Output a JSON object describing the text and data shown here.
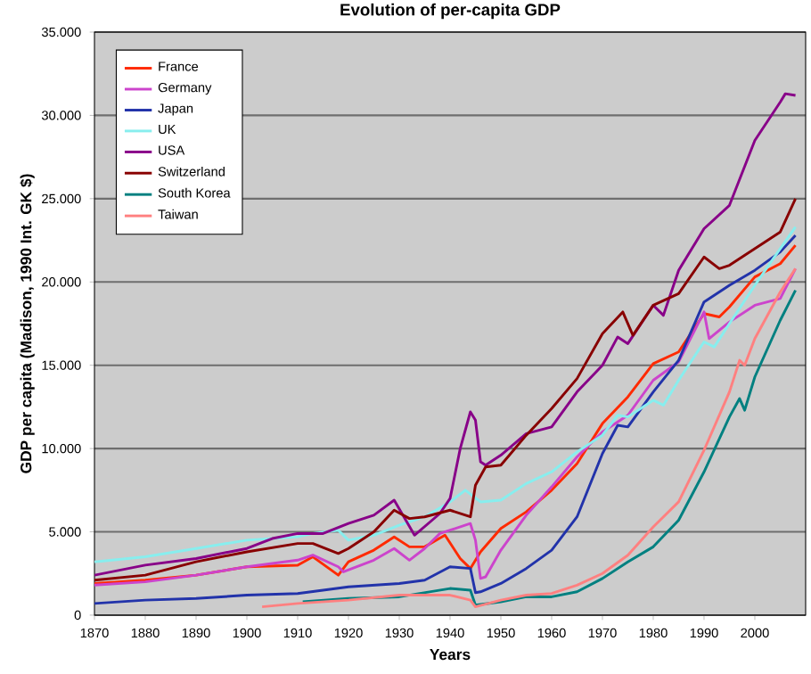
{
  "chart_data": {
    "type": "line",
    "title": "Evolution of per-capita GDP",
    "xlabel": "Years",
    "ylabel": "GDP per capita (Madison, 1990 Int. GK $)",
    "xlim": [
      1870,
      2010
    ],
    "xticks": [
      1870,
      1880,
      1890,
      1900,
      1910,
      1920,
      1930,
      1940,
      1950,
      1960,
      1970,
      1980,
      1990,
      2000
    ],
    "ylim": [
      0,
      35000
    ],
    "yticks": [
      {
        "value": 0,
        "label": "0"
      },
      {
        "value": 5000,
        "label": "5.000"
      },
      {
        "value": 10000,
        "label": "10.000"
      },
      {
        "value": 15000,
        "label": "15.000"
      },
      {
        "value": 20000,
        "label": "20.000"
      },
      {
        "value": 25000,
        "label": "25.000"
      },
      {
        "value": 30000,
        "label": "30.000"
      },
      {
        "value": 35000,
        "label": "35.000"
      }
    ],
    "grid": "y",
    "legend": "top left",
    "marker": "none",
    "line_style": "solid",
    "series": [
      {
        "name": "France",
        "color": "#ff2a00",
        "x": [
          1870,
          1880,
          1890,
          1900,
          1910,
          1913,
          1918,
          1920,
          1925,
          1929,
          1932,
          1935,
          1939,
          1942,
          1944,
          1946,
          1950,
          1955,
          1960,
          1965,
          1970,
          1975,
          1980,
          1985,
          1990,
          1993,
          1995,
          2000,
          2005,
          2008
        ],
        "values": [
          1900,
          2100,
          2400,
          2900,
          3000,
          3500,
          2400,
          3200,
          3900,
          4700,
          4100,
          4100,
          4800,
          3400,
          2800,
          3800,
          5200,
          6200,
          7500,
          9100,
          11500,
          13100,
          15100,
          15800,
          18100,
          17900,
          18500,
          20300,
          21100,
          22200
        ]
      },
      {
        "name": "Germany",
        "color": "#cc44cc",
        "x": [
          1870,
          1880,
          1890,
          1900,
          1910,
          1913,
          1918,
          1919,
          1925,
          1929,
          1932,
          1935,
          1938,
          1944,
          1945,
          1946,
          1947,
          1950,
          1955,
          1960,
          1965,
          1970,
          1975,
          1980,
          1985,
          1990,
          1991,
          1995,
          2000,
          2005,
          2008
        ],
        "values": [
          1800,
          2000,
          2400,
          2900,
          3300,
          3600,
          2900,
          2600,
          3300,
          4000,
          3300,
          4000,
          4900,
          5500,
          4500,
          2200,
          2300,
          3900,
          6000,
          7700,
          9500,
          11000,
          12000,
          14100,
          15200,
          18200,
          16600,
          17600,
          18600,
          19000,
          20800
        ]
      },
      {
        "name": "Japan",
        "color": "#2233aa",
        "x": [
          1870,
          1880,
          1890,
          1900,
          1910,
          1920,
          1930,
          1935,
          1940,
          1944,
          1945,
          1946,
          1950,
          1955,
          1960,
          1965,
          1970,
          1973,
          1975,
          1980,
          1985,
          1990,
          1995,
          2000,
          2005,
          2008
        ],
        "values": [
          700,
          900,
          1000,
          1200,
          1300,
          1700,
          1900,
          2100,
          2900,
          2800,
          1350,
          1400,
          1900,
          2800,
          3900,
          5900,
          9700,
          11400,
          11300,
          13400,
          15300,
          18800,
          19800,
          20700,
          21800,
          22800
        ]
      },
      {
        "name": "UK",
        "color": "#88eeee",
        "x": [
          1870,
          1880,
          1890,
          1900,
          1910,
          1913,
          1918,
          1920,
          1925,
          1930,
          1935,
          1940,
          1943,
          1946,
          1950,
          1955,
          1960,
          1965,
          1970,
          1973,
          1975,
          1980,
          1982,
          1985,
          1990,
          1992,
          1995,
          2000,
          2005,
          2008
        ],
        "values": [
          3200,
          3500,
          4000,
          4500,
          4700,
          4900,
          5100,
          4500,
          4800,
          5400,
          5900,
          6800,
          7500,
          6800,
          6900,
          7900,
          8600,
          9800,
          10800,
          12000,
          11900,
          12900,
          12600,
          14100,
          16400,
          16100,
          17500,
          19800,
          22000,
          23300
        ]
      },
      {
        "name": "USA",
        "color": "#880088",
        "x": [
          1870,
          1880,
          1890,
          1900,
          1905,
          1910,
          1915,
          1920,
          1925,
          1929,
          1933,
          1938,
          1940,
          1942,
          1944,
          1945,
          1946,
          1947,
          1950,
          1955,
          1960,
          1965,
          1970,
          1973,
          1975,
          1980,
          1982,
          1985,
          1990,
          1995,
          2000,
          2005,
          2006,
          2008
        ],
        "values": [
          2400,
          3000,
          3400,
          4000,
          4600,
          4900,
          4900,
          5500,
          6000,
          6900,
          4800,
          6100,
          7000,
          10000,
          12200,
          11700,
          9200,
          9000,
          9600,
          10900,
          11300,
          13400,
          15000,
          16700,
          16300,
          18600,
          18000,
          20700,
          23200,
          24600,
          28500,
          30800,
          31300,
          31200
        ]
      },
      {
        "name": "Switzerland",
        "color": "#880000",
        "x": [
          1870,
          1880,
          1890,
          1900,
          1910,
          1913,
          1918,
          1920,
          1925,
          1929,
          1932,
          1935,
          1940,
          1944,
          1945,
          1947,
          1950,
          1955,
          1960,
          1965,
          1970,
          1974,
          1976,
          1980,
          1985,
          1990,
          1993,
          1995,
          2000,
          2005,
          2008
        ],
        "values": [
          2100,
          2400,
          3200,
          3800,
          4300,
          4300,
          3700,
          4000,
          5000,
          6300,
          5800,
          5900,
          6300,
          5900,
          7800,
          8900,
          9000,
          10800,
          12400,
          14200,
          16900,
          18200,
          16800,
          18600,
          19300,
          21500,
          20800,
          21000,
          22000,
          23000,
          25000
        ]
      },
      {
        "name": "South Korea",
        "color": "#008080",
        "x": [
          1911,
          1920,
          1930,
          1940,
          1944,
          1945,
          1950,
          1955,
          1960,
          1965,
          1970,
          1975,
          1980,
          1985,
          1990,
          1995,
          1997,
          1998,
          2000,
          2005,
          2008
        ],
        "values": [
          800,
          1000,
          1100,
          1600,
          1500,
          600,
          800,
          1100,
          1100,
          1400,
          2200,
          3200,
          4100,
          5700,
          8600,
          11900,
          13000,
          12300,
          14300,
          17700,
          19500
        ]
      },
      {
        "name": "Taiwan",
        "color": "#ff8080",
        "x": [
          1903,
          1910,
          1920,
          1930,
          1940,
          1944,
          1945,
          1950,
          1955,
          1960,
          1965,
          1970,
          1975,
          1980,
          1985,
          1990,
          1995,
          1997,
          1998,
          2000,
          2005,
          2008
        ],
        "values": [
          500,
          700,
          900,
          1200,
          1200,
          900,
          500,
          900,
          1200,
          1300,
          1800,
          2500,
          3600,
          5300,
          6800,
          9900,
          13400,
          15300,
          15000,
          16600,
          19400,
          20800
        ]
      }
    ]
  }
}
